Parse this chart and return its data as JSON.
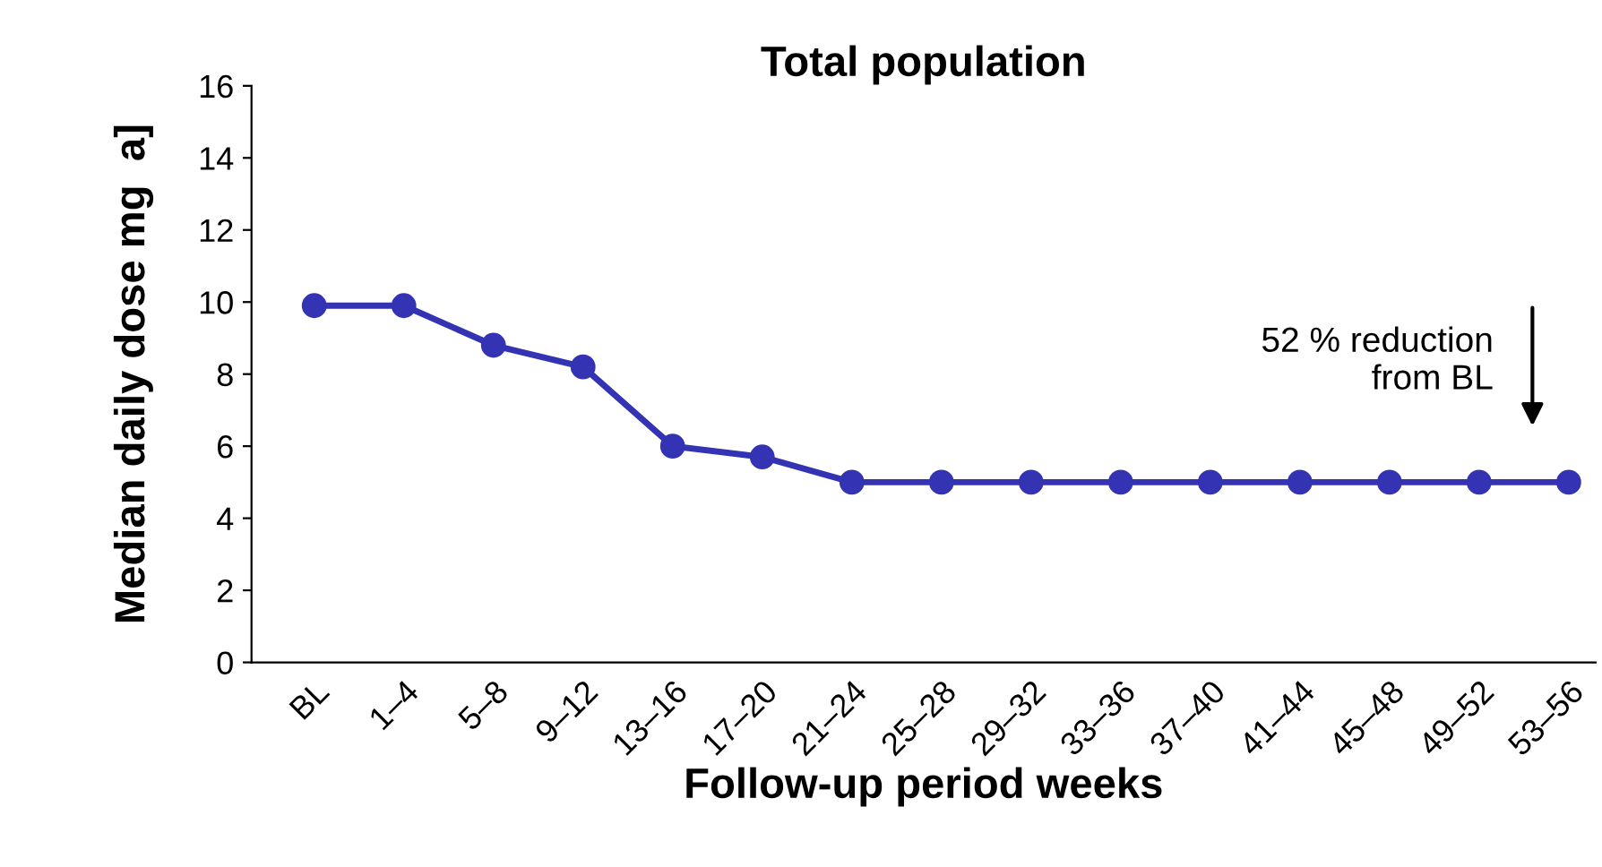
{
  "chart_data": {
    "type": "line",
    "title": "Total population",
    "xlabel": "Follow-up period weeks",
    "ylabel": "Median daily dose mg  a]",
    "categories": [
      "BL",
      "1–4",
      "5–8",
      "9–12",
      "13–16",
      "17–20",
      "21–24",
      "25–28",
      "29–32",
      "33–36",
      "37–40",
      "41–44",
      "45–48",
      "49–52",
      "53–56"
    ],
    "series": [
      {
        "color": "#3333b3",
        "values": [
          9.9,
          9.9,
          8.8,
          8.2,
          6.0,
          5.7,
          5.0,
          5.0,
          5.0,
          5.0,
          5.0,
          5.0,
          5.0,
          5.0,
          5.0
        ]
      }
    ],
    "ylim": [
      0,
      16
    ],
    "yticks": [
      0,
      2,
      4,
      6,
      8,
      10,
      12,
      14,
      16
    ],
    "grid": false,
    "legend": false,
    "marker": "circle",
    "line_style": "solid",
    "annotations": [
      "52 % reduction\nfrom BL"
    ]
  }
}
